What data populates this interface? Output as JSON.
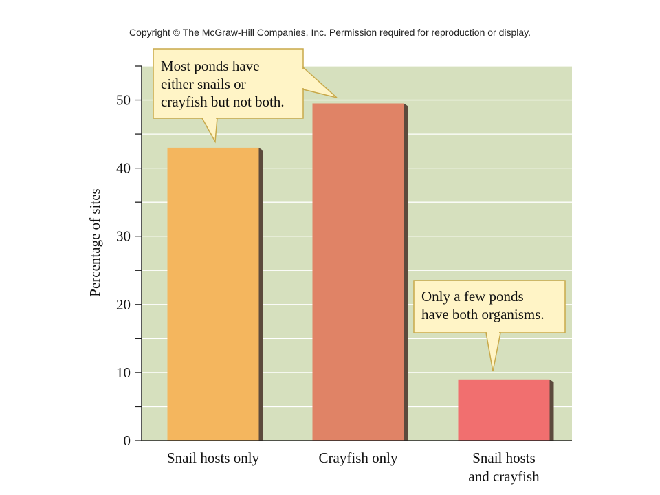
{
  "copyright": "Copyright © The McGraw-Hill Companies, Inc. Permission required for reproduction or display.",
  "chart_data": {
    "type": "bar",
    "title": "",
    "xlabel": "",
    "ylabel": "Percentage of sites",
    "ylim": [
      0,
      55
    ],
    "yticks": [
      0,
      10,
      20,
      30,
      40,
      50
    ],
    "grid": true,
    "categories": [
      [
        "Snail hosts only"
      ],
      [
        "Crayfish only"
      ],
      [
        "Snail hosts",
        "and crayfish"
      ]
    ],
    "values": [
      43,
      49.5,
      9
    ],
    "colors": [
      "#f4b65e",
      "#e08366",
      "#f16f6f"
    ],
    "background_color": "#d6e0be",
    "annotations": [
      {
        "lines": [
          "Most ponds have",
          "either snails or",
          "crayfish but not both."
        ]
      },
      {
        "lines": [
          "Only a few ponds",
          "have both organisms."
        ]
      }
    ]
  }
}
